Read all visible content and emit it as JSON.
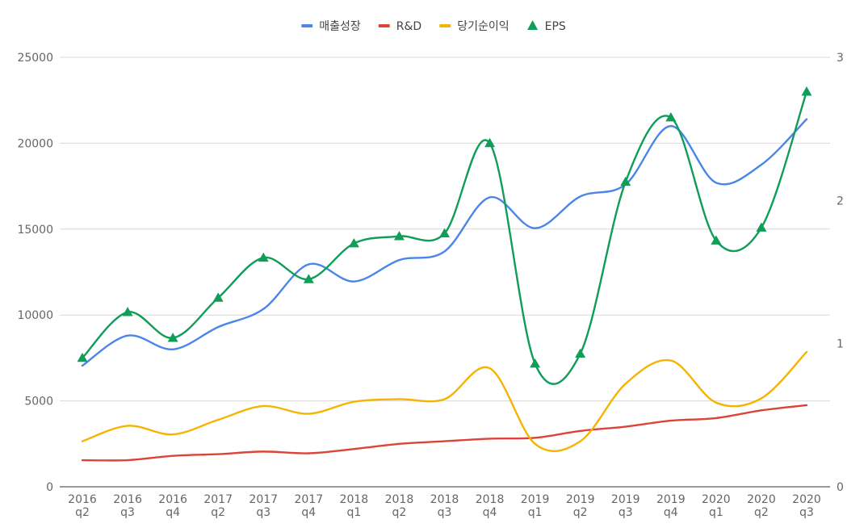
{
  "chart_data": {
    "type": "line",
    "title": "",
    "x": [
      [
        "2016",
        "q2"
      ],
      [
        "2016",
        "q3"
      ],
      [
        "2016",
        "q4"
      ],
      [
        "2017",
        "q2"
      ],
      [
        "2017",
        "q3"
      ],
      [
        "2017",
        "q4"
      ],
      [
        "2018",
        "q1"
      ],
      [
        "2018",
        "q2"
      ],
      [
        "2018",
        "q3"
      ],
      [
        "2018",
        "q4"
      ],
      [
        "2019",
        "q1"
      ],
      [
        "2019",
        "q2"
      ],
      [
        "2019",
        "q3"
      ],
      [
        "2019",
        "q4"
      ],
      [
        "2020",
        "q1"
      ],
      [
        "2020",
        "q2"
      ],
      [
        "2020",
        "q3"
      ]
    ],
    "axes": {
      "left": {
        "min": 0,
        "max": 25000,
        "ticks": [
          "0",
          "5000",
          "10000",
          "15000",
          "20000",
          "25000"
        ]
      },
      "right": {
        "min": 0,
        "max": 3,
        "ticks": [
          "0",
          "1",
          "2",
          "3"
        ]
      }
    },
    "grid": true,
    "legend_position": "top",
    "series": [
      {
        "name": "매출성장",
        "axis": "left",
        "color": "#4a86e8",
        "marker": "none",
        "values": [
          7050,
          8800,
          8000,
          9300,
          10350,
          12950,
          11950,
          13200,
          13700,
          16850,
          15050,
          16900,
          17600,
          21000,
          17700,
          18750,
          21400
        ]
      },
      {
        "name": "R&D",
        "axis": "left",
        "color": "#db4437",
        "marker": "none",
        "values": [
          1550,
          1550,
          1800,
          1900,
          2050,
          1950,
          2200,
          2500,
          2650,
          2800,
          2850,
          3250,
          3500,
          3850,
          4000,
          4450,
          4750
        ]
      },
      {
        "name": "당기순이익",
        "axis": "left",
        "color": "#f4b400",
        "marker": "none",
        "values": [
          2650,
          3550,
          3050,
          3900,
          4700,
          4250,
          4950,
          5100,
          5100,
          6900,
          2500,
          2650,
          6000,
          7350,
          4900,
          5150,
          7850
        ]
      },
      {
        "name": "EPS",
        "axis": "right",
        "color": "#0f9d58",
        "marker": "triangle",
        "values": [
          0.9,
          1.22,
          1.04,
          1.32,
          1.6,
          1.45,
          1.7,
          1.75,
          1.77,
          2.4,
          0.86,
          0.93,
          2.13,
          2.58,
          1.72,
          1.81,
          2.76
        ]
      }
    ]
  }
}
